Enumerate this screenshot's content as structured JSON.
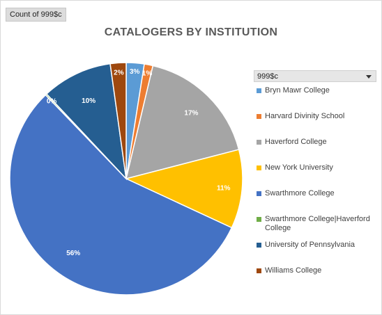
{
  "field_button": {
    "label": "Count of 999$c"
  },
  "legend_filter": {
    "label": "999$c"
  },
  "chart_data": {
    "type": "pie",
    "title": "CATALOGERS BY INSTITUTION",
    "legend_position": "right",
    "slices": [
      {
        "name": "Bryn Mawr College",
        "value": 2.5,
        "label": "3%",
        "color": "#5b9bd5"
      },
      {
        "name": "Harvard Divinity School",
        "value": 1.2,
        "label": "1%",
        "color": "#ed7d31"
      },
      {
        "name": "Haverford College",
        "value": 17.3,
        "label": "17%",
        "color": "#a5a5a5"
      },
      {
        "name": "New York University",
        "value": 11,
        "label": "11%",
        "color": "#ffc000"
      },
      {
        "name": "Swarthmore College",
        "value": 56,
        "label": "56%",
        "color": "#4472c4"
      },
      {
        "name": "Swarthmore College|Haverford College",
        "value": 0.2,
        "label": "0%",
        "color": "#70ad47"
      },
      {
        "name": "University of Pennsylvania",
        "value": 9.8,
        "label": "10%",
        "color": "#255e91"
      },
      {
        "name": "Williams College",
        "value": 2.2,
        "label": "2%",
        "color": "#9e480e"
      }
    ]
  }
}
